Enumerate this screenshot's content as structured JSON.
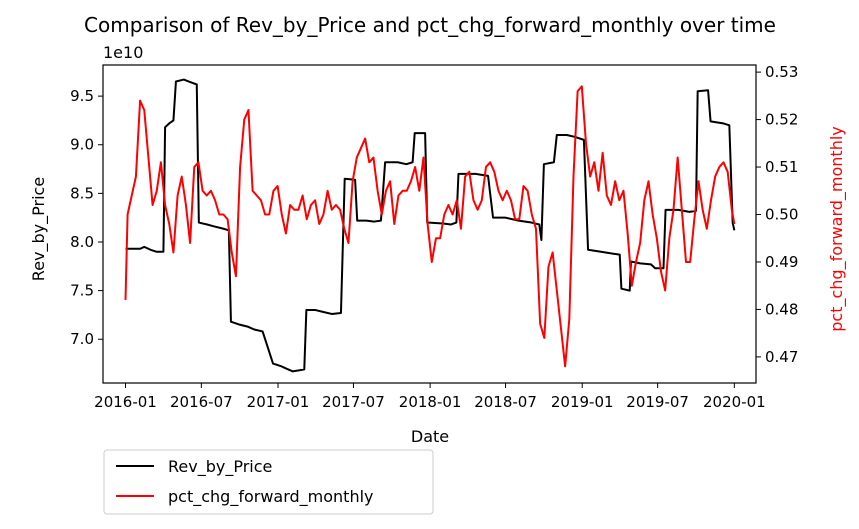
{
  "chart_data": {
    "type": "line",
    "title": "Comparison of Rev_by_Price and pct_chg_forward_monthly over time",
    "xlabel": "Date",
    "ylabel_left": "Rev_by_Price",
    "ylabel_right": "pct_chg_forward_monthly",
    "left_offset_label": "1e10",
    "x_ticks": [
      "2016-01",
      "2016-07",
      "2017-01",
      "2017-07",
      "2018-01",
      "2018-07",
      "2019-01",
      "2019-07",
      "2020-01"
    ],
    "left_ticks": [
      "7.0",
      "7.5",
      "8.0",
      "8.5",
      "9.0",
      "9.5"
    ],
    "right_ticks": [
      "0.47",
      "0.48",
      "0.49",
      "0.50",
      "0.51",
      "0.52",
      "0.53"
    ],
    "xlim": [
      "2015-11-08",
      "2020-02-22"
    ],
    "ylim_left": [
      6.55,
      9.82
    ],
    "ylim_right": [
      0.4645,
      0.5315
    ],
    "legend_placement": "below-left",
    "grid": false,
    "series": [
      {
        "name": "Rev_by_Price",
        "axis": "left",
        "color": "#000000",
        "points": [
          [
            "2016-01-01",
            7.93
          ],
          [
            "2016-02-05",
            7.93
          ],
          [
            "2016-02-15",
            7.95
          ],
          [
            "2016-03-01",
            7.92
          ],
          [
            "2016-03-15",
            7.9
          ],
          [
            "2016-04-01",
            7.9
          ],
          [
            "2016-04-05",
            9.18
          ],
          [
            "2016-04-15",
            9.22
          ],
          [
            "2016-04-25",
            9.25
          ],
          [
            "2016-05-01",
            9.65
          ],
          [
            "2016-05-20",
            9.67
          ],
          [
            "2016-06-01",
            9.65
          ],
          [
            "2016-06-20",
            9.62
          ],
          [
            "2016-06-25",
            8.2
          ],
          [
            "2016-07-15",
            8.18
          ],
          [
            "2016-08-01",
            8.16
          ],
          [
            "2016-08-20",
            8.14
          ],
          [
            "2016-09-05",
            8.12
          ],
          [
            "2016-09-10",
            7.18
          ],
          [
            "2016-10-01",
            7.15
          ],
          [
            "2016-10-20",
            7.13
          ],
          [
            "2016-11-05",
            7.1
          ],
          [
            "2016-11-25",
            7.08
          ],
          [
            "2016-12-20",
            6.75
          ],
          [
            "2017-01-10",
            6.72
          ],
          [
            "2017-01-20",
            6.7
          ],
          [
            "2017-02-05",
            6.67
          ],
          [
            "2017-02-20",
            6.68
          ],
          [
            "2017-03-05",
            6.69
          ],
          [
            "2017-03-10",
            7.3
          ],
          [
            "2017-04-01",
            7.3
          ],
          [
            "2017-04-20",
            7.28
          ],
          [
            "2017-05-10",
            7.26
          ],
          [
            "2017-06-01",
            7.27
          ],
          [
            "2017-06-10",
            8.65
          ],
          [
            "2017-07-05",
            8.64
          ],
          [
            "2017-07-10",
            8.22
          ],
          [
            "2017-08-01",
            8.22
          ],
          [
            "2017-08-20",
            8.21
          ],
          [
            "2017-09-05",
            8.22
          ],
          [
            "2017-09-15",
            8.82
          ],
          [
            "2017-10-15",
            8.82
          ],
          [
            "2017-11-05",
            8.8
          ],
          [
            "2017-11-20",
            8.82
          ],
          [
            "2017-11-25",
            9.12
          ],
          [
            "2017-12-20",
            9.12
          ],
          [
            "2017-12-25",
            8.2
          ],
          [
            "2018-02-01",
            8.19
          ],
          [
            "2018-02-20",
            8.18
          ],
          [
            "2018-03-05",
            8.2
          ],
          [
            "2018-03-10",
            8.7
          ],
          [
            "2018-04-20",
            8.7
          ],
          [
            "2018-05-05",
            8.69
          ],
          [
            "2018-05-20",
            8.68
          ],
          [
            "2018-06-01",
            8.25
          ],
          [
            "2018-07-01",
            8.25
          ],
          [
            "2018-08-01",
            8.22
          ],
          [
            "2018-09-01",
            8.2
          ],
          [
            "2018-09-20",
            8.18
          ],
          [
            "2018-09-25",
            8.02
          ],
          [
            "2018-10-01",
            8.8
          ],
          [
            "2018-10-25",
            8.82
          ],
          [
            "2018-11-01",
            9.1
          ],
          [
            "2018-11-25",
            9.1
          ],
          [
            "2018-12-15",
            9.08
          ],
          [
            "2019-01-05",
            9.05
          ],
          [
            "2019-01-15",
            7.92
          ],
          [
            "2019-02-15",
            7.9
          ],
          [
            "2019-03-15",
            7.88
          ],
          [
            "2019-04-01",
            7.87
          ],
          [
            "2019-04-05",
            7.52
          ],
          [
            "2019-04-25",
            7.5
          ],
          [
            "2019-04-28",
            7.8
          ],
          [
            "2019-05-20",
            7.78
          ],
          [
            "2019-06-15",
            7.77
          ],
          [
            "2019-06-25",
            7.73
          ],
          [
            "2019-07-15",
            7.73
          ],
          [
            "2019-07-20",
            8.33
          ],
          [
            "2019-08-20",
            8.33
          ],
          [
            "2019-09-15",
            8.31
          ],
          [
            "2019-10-01",
            8.32
          ],
          [
            "2019-10-05",
            9.55
          ],
          [
            "2019-10-30",
            9.56
          ],
          [
            "2019-11-05",
            9.24
          ],
          [
            "2019-12-05",
            9.22
          ],
          [
            "2019-12-20",
            9.2
          ],
          [
            "2019-12-28",
            8.2
          ],
          [
            "2020-01-01",
            8.12
          ]
        ]
      },
      {
        "name": "pct_chg_forward_monthly",
        "axis": "right",
        "color": "#ff0000",
        "points": [
          [
            "2016-01-01",
            0.482
          ],
          [
            "2016-01-06",
            0.5
          ],
          [
            "2016-01-16",
            0.504
          ],
          [
            "2016-01-26",
            0.508
          ],
          [
            "2016-02-05",
            0.524
          ],
          [
            "2016-02-15",
            0.522
          ],
          [
            "2016-02-25",
            0.512
          ],
          [
            "2016-03-06",
            0.502
          ],
          [
            "2016-03-16",
            0.505
          ],
          [
            "2016-03-26",
            0.511
          ],
          [
            "2016-04-05",
            0.502
          ],
          [
            "2016-04-15",
            0.498
          ],
          [
            "2016-04-25",
            0.492
          ],
          [
            "2016-05-05",
            0.504
          ],
          [
            "2016-05-15",
            0.508
          ],
          [
            "2016-05-25",
            0.502
          ],
          [
            "2016-06-04",
            0.494
          ],
          [
            "2016-06-14",
            0.51
          ],
          [
            "2016-06-24",
            0.511
          ],
          [
            "2016-07-04",
            0.505
          ],
          [
            "2016-07-14",
            0.504
          ],
          [
            "2016-07-24",
            0.505
          ],
          [
            "2016-08-03",
            0.503
          ],
          [
            "2016-08-13",
            0.5
          ],
          [
            "2016-08-23",
            0.5
          ],
          [
            "2016-09-02",
            0.499
          ],
          [
            "2016-09-12",
            0.492
          ],
          [
            "2016-09-22",
            0.487
          ],
          [
            "2016-10-02",
            0.51
          ],
          [
            "2016-10-12",
            0.52
          ],
          [
            "2016-10-22",
            0.522
          ],
          [
            "2016-11-01",
            0.505
          ],
          [
            "2016-11-11",
            0.504
          ],
          [
            "2016-11-21",
            0.503
          ],
          [
            "2016-12-01",
            0.5
          ],
          [
            "2016-12-11",
            0.5
          ],
          [
            "2016-12-21",
            0.505
          ],
          [
            "2016-12-31",
            0.506
          ],
          [
            "2017-01-10",
            0.5
          ],
          [
            "2017-01-20",
            0.496
          ],
          [
            "2017-01-30",
            0.502
          ],
          [
            "2017-02-09",
            0.501
          ],
          [
            "2017-02-19",
            0.501
          ],
          [
            "2017-03-01",
            0.504
          ],
          [
            "2017-03-11",
            0.499
          ],
          [
            "2017-03-21",
            0.502
          ],
          [
            "2017-03-31",
            0.503
          ],
          [
            "2017-04-10",
            0.498
          ],
          [
            "2017-04-20",
            0.5
          ],
          [
            "2017-04-30",
            0.505
          ],
          [
            "2017-05-10",
            0.501
          ],
          [
            "2017-05-20",
            0.502
          ],
          [
            "2017-05-30",
            0.501
          ],
          [
            "2017-06-09",
            0.497
          ],
          [
            "2017-06-19",
            0.494
          ],
          [
            "2017-06-29",
            0.507
          ],
          [
            "2017-07-09",
            0.512
          ],
          [
            "2017-07-19",
            0.514
          ],
          [
            "2017-07-29",
            0.516
          ],
          [
            "2017-08-08",
            0.511
          ],
          [
            "2017-08-18",
            0.512
          ],
          [
            "2017-08-28",
            0.505
          ],
          [
            "2017-09-07",
            0.5
          ],
          [
            "2017-09-17",
            0.505
          ],
          [
            "2017-09-27",
            0.507
          ],
          [
            "2017-10-07",
            0.498
          ],
          [
            "2017-10-17",
            0.504
          ],
          [
            "2017-10-27",
            0.505
          ],
          [
            "2017-11-06",
            0.505
          ],
          [
            "2017-11-16",
            0.507
          ],
          [
            "2017-11-26",
            0.51
          ],
          [
            "2017-12-06",
            0.505
          ],
          [
            "2017-12-16",
            0.512
          ],
          [
            "2017-12-26",
            0.498
          ],
          [
            "2018-01-05",
            0.49
          ],
          [
            "2018-01-15",
            0.495
          ],
          [
            "2018-01-25",
            0.495
          ],
          [
            "2018-02-04",
            0.5
          ],
          [
            "2018-02-14",
            0.502
          ],
          [
            "2018-02-24",
            0.5
          ],
          [
            "2018-03-06",
            0.503
          ],
          [
            "2018-03-16",
            0.497
          ],
          [
            "2018-03-26",
            0.508
          ],
          [
            "2018-04-05",
            0.509
          ],
          [
            "2018-04-15",
            0.503
          ],
          [
            "2018-04-25",
            0.501
          ],
          [
            "2018-05-05",
            0.503
          ],
          [
            "2018-05-15",
            0.51
          ],
          [
            "2018-05-25",
            0.511
          ],
          [
            "2018-06-04",
            0.509
          ],
          [
            "2018-06-14",
            0.505
          ],
          [
            "2018-06-24",
            0.503
          ],
          [
            "2018-07-04",
            0.505
          ],
          [
            "2018-07-14",
            0.503
          ],
          [
            "2018-07-24",
            0.499
          ],
          [
            "2018-08-03",
            0.499
          ],
          [
            "2018-08-13",
            0.506
          ],
          [
            "2018-08-23",
            0.505
          ],
          [
            "2018-09-02",
            0.5
          ],
          [
            "2018-09-12",
            0.497
          ],
          [
            "2018-09-22",
            0.477
          ],
          [
            "2018-10-02",
            0.474
          ],
          [
            "2018-10-12",
            0.489
          ],
          [
            "2018-10-22",
            0.492
          ],
          [
            "2018-11-01",
            0.484
          ],
          [
            "2018-11-11",
            0.476
          ],
          [
            "2018-11-21",
            0.468
          ],
          [
            "2018-12-01",
            0.478
          ],
          [
            "2018-12-11",
            0.508
          ],
          [
            "2018-12-21",
            0.526
          ],
          [
            "2018-12-31",
            0.527
          ],
          [
            "2019-01-10",
            0.515
          ],
          [
            "2019-01-20",
            0.508
          ],
          [
            "2019-01-30",
            0.511
          ],
          [
            "2019-02-09",
            0.505
          ],
          [
            "2019-02-19",
            0.513
          ],
          [
            "2019-03-01",
            0.504
          ],
          [
            "2019-03-11",
            0.502
          ],
          [
            "2019-03-21",
            0.507
          ],
          [
            "2019-03-31",
            0.503
          ],
          [
            "2019-04-10",
            0.505
          ],
          [
            "2019-04-20",
            0.496
          ],
          [
            "2019-04-30",
            0.485
          ],
          [
            "2019-05-10",
            0.49
          ],
          [
            "2019-05-20",
            0.494
          ],
          [
            "2019-05-30",
            0.503
          ],
          [
            "2019-06-09",
            0.507
          ],
          [
            "2019-06-19",
            0.5
          ],
          [
            "2019-06-29",
            0.495
          ],
          [
            "2019-07-09",
            0.488
          ],
          [
            "2019-07-19",
            0.484
          ],
          [
            "2019-07-29",
            0.495
          ],
          [
            "2019-08-08",
            0.501
          ],
          [
            "2019-08-18",
            0.512
          ],
          [
            "2019-08-28",
            0.501
          ],
          [
            "2019-09-07",
            0.49
          ],
          [
            "2019-09-17",
            0.49
          ],
          [
            "2019-09-27",
            0.499
          ],
          [
            "2019-10-07",
            0.507
          ],
          [
            "2019-10-17",
            0.501
          ],
          [
            "2019-10-27",
            0.497
          ],
          [
            "2019-11-06",
            0.503
          ],
          [
            "2019-11-16",
            0.508
          ],
          [
            "2019-11-26",
            0.51
          ],
          [
            "2019-12-06",
            0.511
          ],
          [
            "2019-12-16",
            0.509
          ],
          [
            "2019-12-26",
            0.501
          ],
          [
            "2020-01-01",
            0.498
          ]
        ]
      }
    ]
  }
}
